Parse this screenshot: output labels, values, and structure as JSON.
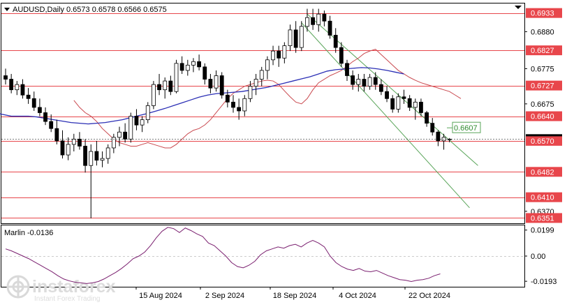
{
  "header": {
    "symbol_line": "AUDUSD,Daily  0.6573  0.6578  0.6566  0.6575"
  },
  "price_panel": {
    "range": [
      0.6336,
      0.696
    ],
    "price_ticks": [
      "0.6880",
      "0.6775",
      "0.6675",
      "0.6370"
    ],
    "levels": [
      {
        "label": "0.6933",
        "value": 0.6933
      },
      {
        "label": "0.6827",
        "value": 0.6827
      },
      {
        "label": "0.6727",
        "value": 0.6727
      },
      {
        "label": "0.6640",
        "value": 0.664
      },
      {
        "label": "0.6570",
        "value": 0.657
      },
      {
        "label": "0.6482",
        "value": 0.6482
      },
      {
        "label": "0.6410",
        "value": 0.641
      },
      {
        "label": "0.6351",
        "value": 0.6351
      }
    ],
    "target_label": "0.6607",
    "current_price": 0.6575,
    "colors": {
      "level": "#e8464b",
      "ma_fast": "#c9494f",
      "ma_slow": "#2b2fb5",
      "channel": "#5aa55a",
      "target_text": "#2e8b2e",
      "candle_up": "#ffffff",
      "candle_down": "#000000"
    }
  },
  "oscillator": {
    "title": "Marlin -0.0136",
    "range": [
      -0.0235,
      0.0235
    ],
    "ticks": [
      {
        "label": "0.0199",
        "value": 0.0199
      },
      {
        "label": "0.00",
        "value": 0.0
      },
      {
        "label": "-0.0193",
        "value": -0.0193
      }
    ],
    "line_color": "#7a1f6f"
  },
  "time_axis": {
    "labels": [
      "15 Aug 2024",
      "2 Sep 2024",
      "18 Sep 2024",
      "4 Oct 2024",
      "22 Oct 2024"
    ]
  },
  "watermark": {
    "brand": "instaforex",
    "tagline": "Instant Forex Trading"
  },
  "chart_data": {
    "type": "candlestick",
    "symbol": "AUDUSD",
    "timeframe": "Daily",
    "ohlc": [
      [
        0.6755,
        0.6775,
        0.673,
        0.6745
      ],
      [
        0.6745,
        0.676,
        0.6705,
        0.6715
      ],
      [
        0.6715,
        0.674,
        0.67,
        0.673
      ],
      [
        0.673,
        0.6745,
        0.669,
        0.67
      ],
      [
        0.67,
        0.672,
        0.6675,
        0.669
      ],
      [
        0.669,
        0.671,
        0.6655,
        0.6665
      ],
      [
        0.6665,
        0.669,
        0.664,
        0.665
      ],
      [
        0.665,
        0.6665,
        0.6615,
        0.6625
      ],
      [
        0.6625,
        0.6645,
        0.6595,
        0.6605
      ],
      [
        0.6605,
        0.663,
        0.656,
        0.657
      ],
      [
        0.657,
        0.66,
        0.652,
        0.653
      ],
      [
        0.653,
        0.658,
        0.6515,
        0.656
      ],
      [
        0.656,
        0.659,
        0.654,
        0.6575
      ],
      [
        0.6575,
        0.6595,
        0.6545,
        0.6555
      ],
      [
        0.6555,
        0.6575,
        0.648,
        0.65
      ],
      [
        0.65,
        0.656,
        0.635,
        0.654
      ],
      [
        0.654,
        0.657,
        0.65,
        0.6515
      ],
      [
        0.6515,
        0.654,
        0.6495,
        0.652
      ],
      [
        0.652,
        0.656,
        0.6505,
        0.655
      ],
      [
        0.655,
        0.659,
        0.6535,
        0.658
      ],
      [
        0.658,
        0.661,
        0.6555,
        0.6595
      ],
      [
        0.6595,
        0.662,
        0.6565,
        0.6575
      ],
      [
        0.6575,
        0.665,
        0.6565,
        0.664
      ],
      [
        0.664,
        0.666,
        0.66,
        0.6615
      ],
      [
        0.6615,
        0.664,
        0.6595,
        0.663
      ],
      [
        0.663,
        0.668,
        0.662,
        0.667
      ],
      [
        0.667,
        0.674,
        0.666,
        0.673
      ],
      [
        0.673,
        0.676,
        0.67,
        0.6715
      ],
      [
        0.6715,
        0.675,
        0.669,
        0.674
      ],
      [
        0.674,
        0.6755,
        0.67,
        0.671
      ],
      [
        0.671,
        0.68,
        0.6705,
        0.679
      ],
      [
        0.679,
        0.681,
        0.676,
        0.677
      ],
      [
        0.677,
        0.68,
        0.6755,
        0.6785
      ],
      [
        0.6785,
        0.6805,
        0.6765,
        0.6795
      ],
      [
        0.6795,
        0.6815,
        0.677,
        0.678
      ],
      [
        0.678,
        0.679,
        0.673,
        0.6745
      ],
      [
        0.6745,
        0.676,
        0.6705,
        0.672
      ],
      [
        0.672,
        0.677,
        0.671,
        0.6755
      ],
      [
        0.6755,
        0.6765,
        0.669,
        0.67
      ],
      [
        0.67,
        0.6715,
        0.6665,
        0.668
      ],
      [
        0.668,
        0.67,
        0.665,
        0.6665
      ],
      [
        0.6665,
        0.669,
        0.663,
        0.6655
      ],
      [
        0.6655,
        0.67,
        0.664,
        0.669
      ],
      [
        0.669,
        0.674,
        0.668,
        0.6725
      ],
      [
        0.6725,
        0.676,
        0.67,
        0.6745
      ],
      [
        0.6745,
        0.678,
        0.6725,
        0.677
      ],
      [
        0.677,
        0.681,
        0.6745,
        0.68
      ],
      [
        0.68,
        0.684,
        0.6785,
        0.6825
      ],
      [
        0.6825,
        0.684,
        0.678,
        0.6805
      ],
      [
        0.6805,
        0.685,
        0.679,
        0.684
      ],
      [
        0.684,
        0.69,
        0.6825,
        0.6885
      ],
      [
        0.6885,
        0.691,
        0.682,
        0.6835
      ],
      [
        0.6835,
        0.691,
        0.6825,
        0.6895
      ],
      [
        0.6895,
        0.6945,
        0.688,
        0.692
      ],
      [
        0.692,
        0.6945,
        0.6885,
        0.69
      ],
      [
        0.69,
        0.6945,
        0.688,
        0.693
      ],
      [
        0.693,
        0.694,
        0.6895,
        0.691
      ],
      [
        0.691,
        0.6925,
        0.686,
        0.687
      ],
      [
        0.687,
        0.689,
        0.682,
        0.6835
      ],
      [
        0.6835,
        0.685,
        0.678,
        0.679
      ],
      [
        0.679,
        0.68,
        0.674,
        0.6755
      ],
      [
        0.6755,
        0.677,
        0.6715,
        0.673
      ],
      [
        0.673,
        0.676,
        0.671,
        0.6745
      ],
      [
        0.6745,
        0.676,
        0.671,
        0.6725
      ],
      [
        0.6725,
        0.676,
        0.6715,
        0.675
      ],
      [
        0.675,
        0.6765,
        0.6715,
        0.673
      ],
      [
        0.673,
        0.6745,
        0.67,
        0.671
      ],
      [
        0.671,
        0.6725,
        0.668,
        0.669
      ],
      [
        0.669,
        0.67,
        0.665,
        0.666
      ],
      [
        0.666,
        0.6705,
        0.665,
        0.6695
      ],
      [
        0.6695,
        0.6715,
        0.6675,
        0.669
      ],
      [
        0.669,
        0.67,
        0.6655,
        0.6665
      ],
      [
        0.6665,
        0.669,
        0.663,
        0.668
      ],
      [
        0.668,
        0.669,
        0.664,
        0.665
      ],
      [
        0.665,
        0.6655,
        0.661,
        0.662
      ],
      [
        0.662,
        0.6635,
        0.6585,
        0.6595
      ],
      [
        0.6595,
        0.66,
        0.6555,
        0.657
      ],
      [
        0.657,
        0.659,
        0.6545,
        0.658
      ],
      [
        0.6573,
        0.6578,
        0.6566,
        0.6575
      ]
    ],
    "ma_fast": [
      0.6685,
      0.6665,
      0.665,
      0.664,
      0.6625,
      0.6605,
      0.659,
      0.6575,
      0.6565,
      0.656,
      0.6555,
      0.6555,
      0.656,
      0.6565,
      0.656,
      0.6555,
      0.655,
      0.655,
      0.656,
      0.6575,
      0.659,
      0.66,
      0.6605,
      0.6615,
      0.663,
      0.665,
      0.667,
      0.669,
      0.6705,
      0.6715,
      0.6725,
      0.673,
      0.6735,
      0.674,
      0.6742,
      0.674,
      0.673,
      0.6712,
      0.6695,
      0.668,
      0.6675,
      0.669,
      0.6715,
      0.6735,
      0.6745,
      0.6755,
      0.6762,
      0.677,
      0.6782,
      0.6795,
      0.6805,
      0.6818,
      0.6825,
      0.683,
      0.6815,
      0.68,
      0.6785,
      0.677,
      0.676,
      0.675,
      0.6742,
      0.6735,
      0.673,
      0.6725,
      0.672,
      0.6715,
      0.671,
      0.67,
      0.669
    ],
    "ma_slow": [
      0.665,
      0.6645,
      0.664,
      0.664,
      0.664,
      0.6638,
      0.6634,
      0.663,
      0.6626,
      0.6622,
      0.662,
      0.6618,
      0.662,
      0.6622,
      0.6626,
      0.663,
      0.6636,
      0.6642,
      0.6648,
      0.6655,
      0.6662,
      0.667,
      0.6678,
      0.6686,
      0.6694,
      0.67,
      0.6704,
      0.6706,
      0.6708,
      0.671,
      0.6714,
      0.6718,
      0.6722,
      0.6728,
      0.6734,
      0.674,
      0.6746,
      0.6752,
      0.676,
      0.6768,
      0.6772,
      0.6774,
      0.6776,
      0.6778,
      0.6777,
      0.6774,
      0.677,
      0.6765,
      0.676
    ],
    "marlin": [
      0.0055,
      0.004,
      0.002,
      0.0,
      -0.002,
      -0.0045,
      -0.007,
      -0.0095,
      -0.012,
      -0.015,
      -0.0175,
      -0.019,
      -0.02,
      -0.0205,
      -0.021,
      -0.0205,
      -0.0195,
      -0.0175,
      -0.015,
      -0.0125,
      -0.0095,
      -0.006,
      -0.002,
      0.0,
      0.003,
      0.008,
      0.014,
      0.019,
      0.022,
      0.021,
      0.018,
      0.0215,
      0.0195,
      0.017,
      0.015,
      0.01,
      0.008,
      0.004,
      0.0,
      -0.005,
      -0.008,
      -0.009,
      -0.007,
      -0.004,
      0.001,
      0.004,
      0.0055,
      0.007,
      0.006,
      0.008,
      0.009,
      0.007,
      0.01,
      0.012,
      0.01,
      0.007,
      0.0,
      -0.005,
      -0.008,
      -0.01,
      -0.011,
      -0.0095,
      -0.0115,
      -0.012,
      -0.011,
      -0.013,
      -0.015,
      -0.0165,
      -0.018,
      -0.0185,
      -0.0195,
      -0.0185,
      -0.018,
      -0.017,
      -0.015,
      -0.0136
    ],
    "channel": {
      "upper": [
        0.693,
        0.65
      ],
      "lower": [
        0.6905,
        0.638
      ]
    },
    "ylim": [
      0.6336,
      0.696
    ]
  }
}
